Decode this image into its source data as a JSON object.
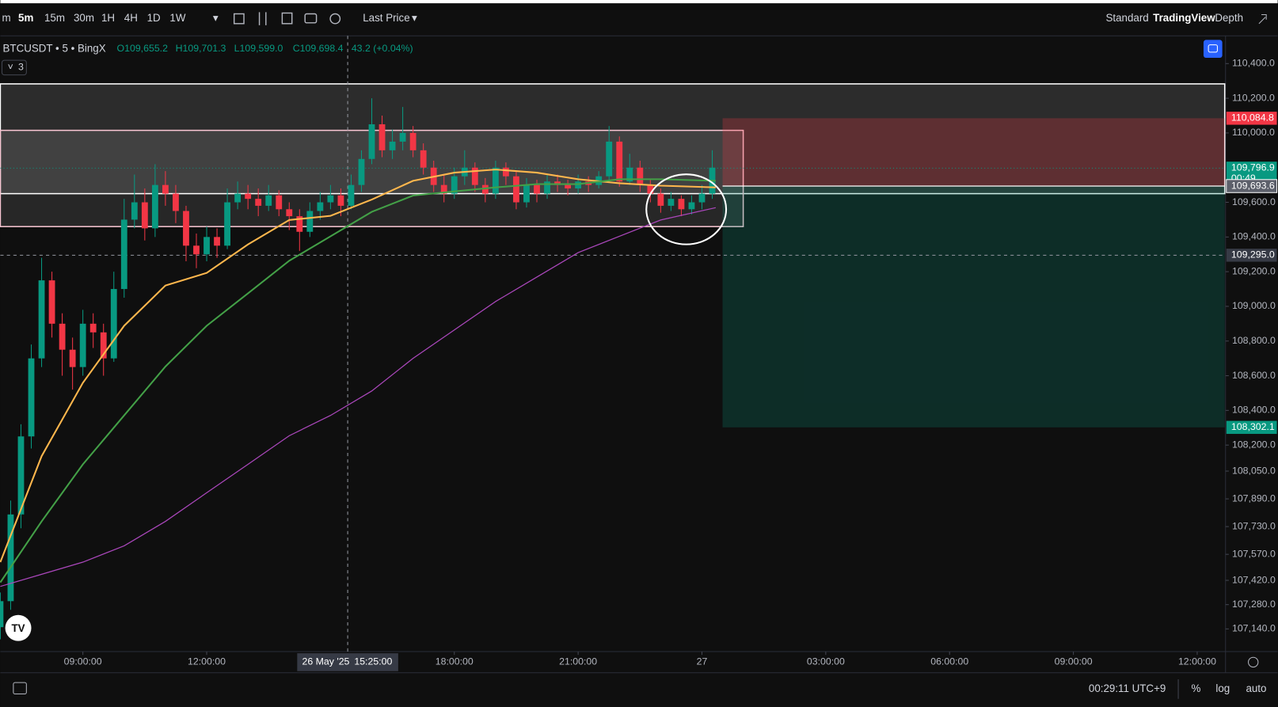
{
  "ui": {
    "timeframes": [
      "m",
      "5m",
      "15m",
      "30m",
      "1H",
      "4H",
      "1D",
      "1W"
    ],
    "price_source": "Last Price",
    "modes": [
      "Standard",
      "TradingView",
      "Depth"
    ],
    "symbol": "BTCUSDT • 5 • BingX",
    "ohlc": [
      "O109,655.2",
      "H109,701.3",
      "L109,599.0",
      "C109,698.4",
      "43.2 (+0.04%)"
    ],
    "indicator_count": "3",
    "clock": "00:29:11 UTC+9",
    "scale_buttons": [
      "%",
      "log",
      "auto"
    ]
  },
  "chart_data": {
    "type": "candlestick",
    "ylim": [
      107009,
      110560
    ],
    "xlim": [
      "2025-05-26T07:00",
      "2025-05-27T12:40"
    ],
    "yticks": [
      {
        "value": 110400,
        "label": "110,400.0"
      },
      {
        "value": 110200,
        "label": "110,200.0"
      },
      {
        "value": 110000,
        "label": "110,000.0"
      },
      {
        "value": 109600,
        "label": "109,600.0"
      },
      {
        "value": 109400,
        "label": "109,400.0"
      },
      {
        "value": 109200,
        "label": "109,200.0"
      },
      {
        "value": 109000,
        "label": "109,000.0"
      },
      {
        "value": 108800,
        "label": "108,800.0"
      },
      {
        "value": 108600,
        "label": "108,600.0"
      },
      {
        "value": 108400,
        "label": "108,400.0"
      },
      {
        "value": 108200,
        "label": "108,200.0"
      },
      {
        "value": 108050,
        "label": "108,050.0"
      },
      {
        "value": 107890,
        "label": "107,890.0"
      },
      {
        "value": 107730,
        "label": "107,730.0"
      },
      {
        "value": 107570,
        "label": "107,570.0"
      },
      {
        "value": 107420,
        "label": "107,420.0"
      },
      {
        "value": 107280,
        "label": "107,280.0"
      },
      {
        "value": 107140,
        "label": "107,140.0"
      }
    ],
    "xticks": [
      {
        "value": "2025-05-26T09:00",
        "label": "09:00:00"
      },
      {
        "value": "2025-05-26T12:00",
        "label": "12:00:00"
      },
      {
        "value": "2025-05-26T18:00",
        "label": "18:00:00"
      },
      {
        "value": "2025-05-26T21:00",
        "label": "21:00:00"
      },
      {
        "value": "2025-05-27T00:00",
        "label": "27"
      },
      {
        "value": "2025-05-27T03:00",
        "label": "03:00:00"
      },
      {
        "value": "2025-05-27T06:00",
        "label": "06:00:00"
      },
      {
        "value": "2025-05-27T09:00",
        "label": "09:00:00"
      },
      {
        "value": "2025-05-27T12:00",
        "label": "12:00:00"
      }
    ],
    "up_color": "#089981",
    "down_color": "#f23645",
    "candles": {
      "time": [
        "2025-05-26T07:00",
        "2025-05-26T07:15",
        "2025-05-26T07:30",
        "2025-05-26T07:45",
        "2025-05-26T08:00",
        "2025-05-26T08:15",
        "2025-05-26T08:30",
        "2025-05-26T08:45",
        "2025-05-26T09:00",
        "2025-05-26T09:15",
        "2025-05-26T09:30",
        "2025-05-26T09:45",
        "2025-05-26T10:00",
        "2025-05-26T10:15",
        "2025-05-26T10:30",
        "2025-05-26T10:45",
        "2025-05-26T11:00",
        "2025-05-26T11:15",
        "2025-05-26T11:30",
        "2025-05-26T11:45",
        "2025-05-26T12:00",
        "2025-05-26T12:15",
        "2025-05-26T12:30",
        "2025-05-26T12:45",
        "2025-05-26T13:00",
        "2025-05-26T13:15",
        "2025-05-26T13:30",
        "2025-05-26T13:45",
        "2025-05-26T14:00",
        "2025-05-26T14:15",
        "2025-05-26T14:30",
        "2025-05-26T14:45",
        "2025-05-26T15:00",
        "2025-05-26T15:15",
        "2025-05-26T15:30",
        "2025-05-26T15:45",
        "2025-05-26T16:00",
        "2025-05-26T16:15",
        "2025-05-26T16:30",
        "2025-05-26T16:45",
        "2025-05-26T17:00",
        "2025-05-26T17:15",
        "2025-05-26T17:30",
        "2025-05-26T17:45",
        "2025-05-26T18:00",
        "2025-05-26T18:15",
        "2025-05-26T18:30",
        "2025-05-26T18:45",
        "2025-05-26T19:00",
        "2025-05-26T19:15",
        "2025-05-26T19:30",
        "2025-05-26T19:45",
        "2025-05-26T20:00",
        "2025-05-26T20:15",
        "2025-05-26T20:30",
        "2025-05-26T20:45",
        "2025-05-26T21:00",
        "2025-05-26T21:15",
        "2025-05-26T21:30",
        "2025-05-26T21:45",
        "2025-05-26T22:00",
        "2025-05-26T22:15",
        "2025-05-26T22:30",
        "2025-05-26T22:45",
        "2025-05-26T23:00",
        "2025-05-26T23:15",
        "2025-05-26T23:30",
        "2025-05-26T23:45",
        "2025-05-27T00:00",
        "2025-05-27T00:15"
      ],
      "open": [
        107150,
        107300,
        107800,
        108250,
        108700,
        109150,
        108900,
        108750,
        108650,
        108900,
        108850,
        108700,
        109100,
        109500,
        109600,
        109450,
        109700,
        109650,
        109550,
        109350,
        109300,
        109400,
        109350,
        109600,
        109650,
        109620,
        109580,
        109640,
        109560,
        109520,
        109430,
        109550,
        109600,
        109640,
        109580,
        109700,
        109850,
        110050,
        109900,
        109950,
        110000,
        109900,
        109800,
        109700,
        109650,
        109750,
        109800,
        109700,
        109650,
        109800,
        109750,
        109600,
        109700,
        109650,
        109720,
        109700,
        109680,
        109720,
        109700,
        109750,
        109950,
        109720,
        109800,
        109700,
        109650,
        109580,
        109620,
        109560,
        109600,
        109650
      ],
      "high": [
        107350,
        107880,
        108320,
        108780,
        109280,
        109200,
        108960,
        108820,
        108980,
        108960,
        108900,
        109200,
        109620,
        109760,
        109680,
        109820,
        109780,
        109700,
        109580,
        109420,
        109460,
        109450,
        109680,
        109720,
        109700,
        109680,
        109700,
        109670,
        109600,
        109560,
        109600,
        109660,
        109700,
        109680,
        109760,
        109900,
        110200,
        110100,
        110020,
        110150,
        110040,
        109940,
        109840,
        109760,
        109800,
        109900,
        109830,
        109740,
        109840,
        109830,
        109780,
        109740,
        109730,
        109760,
        109760,
        109730,
        109760,
        109750,
        109780,
        110040,
        109980,
        109880,
        109840,
        109730,
        109680,
        109660,
        109640,
        109640,
        109700,
        109900
      ],
      "low": [
        107080,
        107250,
        107720,
        108180,
        108650,
        108820,
        108600,
        108520,
        108600,
        108760,
        108600,
        108680,
        109050,
        109450,
        109380,
        109400,
        109580,
        109480,
        109260,
        109220,
        109260,
        109280,
        109330,
        109560,
        109560,
        109520,
        109550,
        109520,
        109440,
        109320,
        109400,
        109500,
        109560,
        109520,
        109560,
        109660,
        109820,
        109860,
        109850,
        109900,
        109860,
        109760,
        109660,
        109600,
        109620,
        109700,
        109660,
        109600,
        109620,
        109700,
        109560,
        109570,
        109600,
        109620,
        109660,
        109640,
        109650,
        109660,
        109680,
        109720,
        109690,
        109700,
        109660,
        109600,
        109540,
        109550,
        109520,
        109530,
        109560,
        109620
      ],
      "close": [
        107300,
        107800,
        108250,
        108700,
        109150,
        108900,
        108750,
        108650,
        108900,
        108850,
        108700,
        109100,
        109500,
        109600,
        109450,
        109700,
        109650,
        109550,
        109350,
        109300,
        109400,
        109350,
        109600,
        109650,
        109620,
        109580,
        109640,
        109560,
        109520,
        109430,
        109550,
        109600,
        109640,
        109580,
        109700,
        109850,
        110050,
        109900,
        109950,
        110000,
        109900,
        109800,
        109700,
        109650,
        109750,
        109800,
        109700,
        109650,
        109800,
        109750,
        109600,
        109700,
        109650,
        109720,
        109700,
        109680,
        109720,
        109700,
        109750,
        109950,
        109720,
        109800,
        109700,
        109650,
        109580,
        109620,
        109560,
        109600,
        109650,
        109800
      ]
    },
    "x": [
      "2025-05-26T07:00",
      "2025-05-26T08:00",
      "2025-05-26T09:00",
      "2025-05-26T10:00",
      "2025-05-26T11:00",
      "2025-05-26T12:00",
      "2025-05-26T13:00",
      "2025-05-26T14:00",
      "2025-05-26T15:00",
      "2025-05-26T16:00",
      "2025-05-26T17:00",
      "2025-05-26T18:00",
      "2025-05-26T19:00",
      "2025-05-26T20:00",
      "2025-05-26T21:00",
      "2025-05-26T22:00",
      "2025-05-26T23:00",
      "2025-05-27T00:20"
    ],
    "series": [
      {
        "color": "#ffb74d",
        "values": [
          107525,
          108136,
          108559,
          108888,
          109120,
          109193,
          109357,
          109498,
          109522,
          109616,
          109724,
          109771,
          109789,
          109771,
          109733,
          109710,
          109696,
          109686
        ]
      },
      {
        "color": "#43a047",
        "values": [
          107408,
          107760,
          108089,
          108371,
          108653,
          108888,
          109075,
          109263,
          109404,
          109545,
          109639,
          109663,
          109686,
          109705,
          109705,
          109733,
          109733,
          109724
        ]
      },
      {
        "color": "#ab47bc",
        "values": [
          107385,
          107455,
          107525,
          107619,
          107760,
          107925,
          108089,
          108254,
          108371,
          108512,
          108700,
          108864,
          109028,
          109169,
          109310,
          109404,
          109498,
          109569
        ]
      }
    ],
    "zones": [
      {
        "top": 110283,
        "bottom": 109650,
        "start": "2025-05-26T07:00",
        "end": "2025-05-27T12:40",
        "color": "#ffffff"
      },
      {
        "top": 110015,
        "bottom": 109460,
        "start": "2025-05-26T07:00",
        "end": "2025-05-27T01:00",
        "color": "#f7c5d1"
      }
    ],
    "position": {
      "start": "2025-05-27T00:30",
      "end": "2025-05-27T12:40",
      "stop_color": "#f23645",
      "target_color": "#089981"
    },
    "price_labels": [
      {
        "value": 110084.8,
        "label": "110,084.8",
        "color": "#f23645"
      },
      {
        "value": 109796.9,
        "label": "109,796.9",
        "color": "#089981",
        "countdown": "00:49"
      },
      {
        "value": 109693.6,
        "label": "109,693.6",
        "color": "#5d606b"
      },
      {
        "value": 109295.0,
        "label": "109,295.0",
        "color": "#363a45"
      },
      {
        "value": 108302.1,
        "label": "108,302.1",
        "color": "#089981"
      }
    ],
    "crosshair": {
      "time": "2025-05-26T15:25",
      "date_label": "26 May '25",
      "time_label": "15:25:00"
    }
  }
}
